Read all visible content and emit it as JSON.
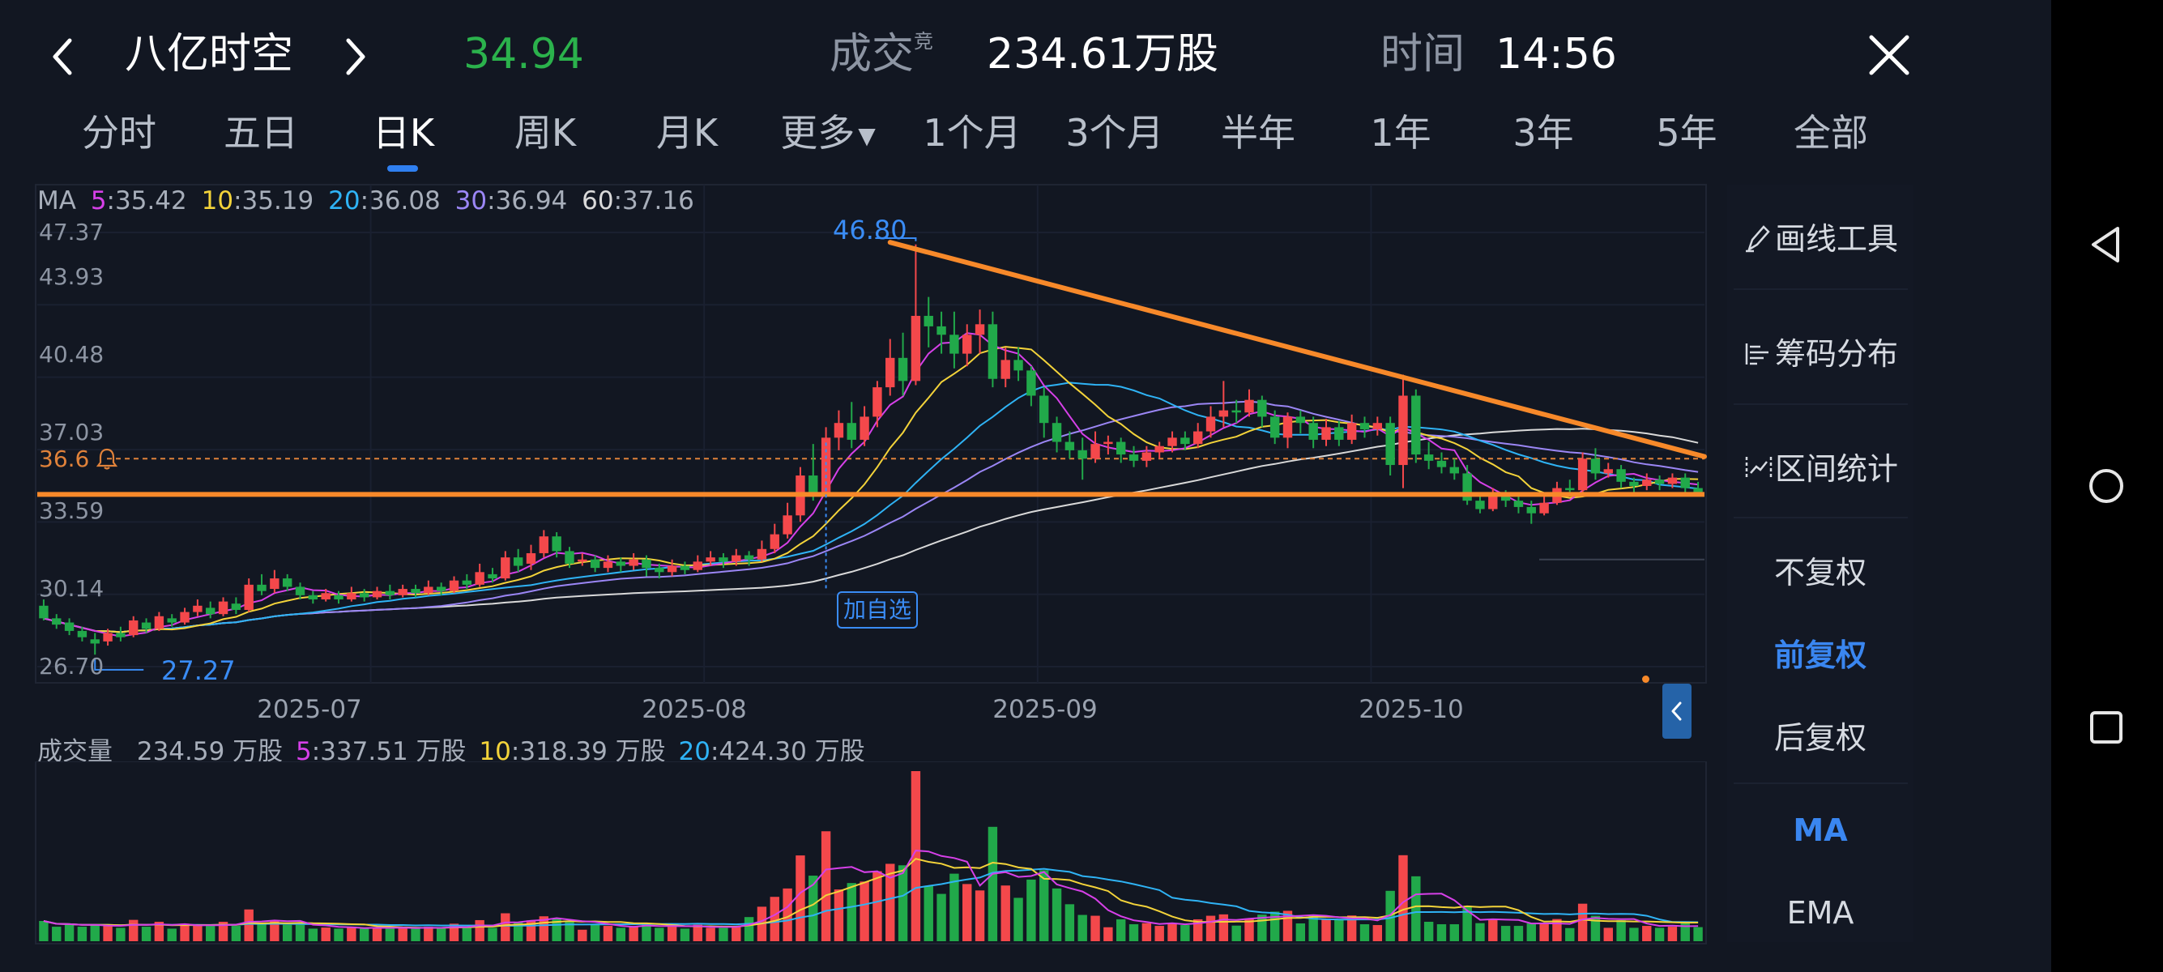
{
  "header": {
    "stock_name": "八亿时空",
    "price": "34.94",
    "volume_label": "成交",
    "volume_sup": "竞",
    "volume_value": "234.61万股",
    "time_label": "时间",
    "time_value": "14:56"
  },
  "tabs": [
    {
      "label": "分时",
      "active": false
    },
    {
      "label": "五日",
      "active": false
    },
    {
      "label": "日K",
      "active": true
    },
    {
      "label": "周K",
      "active": false
    },
    {
      "label": "月K",
      "active": false
    },
    {
      "label": "更多",
      "active": false
    },
    {
      "label": "1个月",
      "active": false
    },
    {
      "label": "3个月",
      "active": false
    },
    {
      "label": "半年",
      "active": false
    },
    {
      "label": "1年",
      "active": false
    },
    {
      "label": "3年",
      "active": false
    },
    {
      "label": "5年",
      "active": false
    },
    {
      "label": "全部",
      "active": false
    }
  ],
  "ma_line": {
    "label": "MA",
    "items": [
      {
        "period": "5",
        "value": ":35.42",
        "color": "#d640e8"
      },
      {
        "period": "10",
        "value": ":35.19",
        "color": "#f3d33a"
      },
      {
        "period": "20",
        "value": ":36.08",
        "color": "#2fb3f5"
      },
      {
        "period": "30",
        "value": ":36.94",
        "color": "#9b86f5"
      },
      {
        "period": "60",
        "value": ":37.16",
        "color": "#d9d9d9"
      }
    ]
  },
  "alert": {
    "value": "36.6",
    "color": "#e0823a"
  },
  "annotations": {
    "high": "46.80",
    "low": "27.27",
    "add_watch": "加自选"
  },
  "volume_line": {
    "label": "成交量",
    "value": "234.59 万股",
    "items": [
      {
        "period": "5",
        "value": ":337.51 万股",
        "color": "#d640e8"
      },
      {
        "period": "10",
        "value": ":318.39 万股",
        "color": "#f3d33a"
      },
      {
        "period": "20",
        "value": ":424.30 万股",
        "color": "#2fb3f5"
      }
    ]
  },
  "side_panel": {
    "draw_tool": "画线工具",
    "chip_dist": "筹码分布",
    "range_stats": "区间统计",
    "no_adjust": "不复权",
    "forward_adjust": "前复权",
    "backward_adjust": "后复权",
    "ma": "MA",
    "ema": "EMA"
  },
  "colors": {
    "up": "#f4484b",
    "down": "#21a94a",
    "accent": "#2f7ff0",
    "trendline": "#f7892a",
    "price_green": "#2bb24c"
  },
  "chart_data": {
    "type": "candlestick",
    "y_ticks": [
      "47.37",
      "43.93",
      "40.48",
      "37.03",
      "33.59",
      "30.14",
      "26.70"
    ],
    "ylim": [
      26.7,
      47.37
    ],
    "x_ticks": [
      "2025-07",
      "2025-08",
      "2025-09",
      "2025-10"
    ],
    "high_marker": 46.8,
    "low_marker": 27.27,
    "trendline": {
      "start": 46.9,
      "end": 36.7
    },
    "support_line": 34.9,
    "alert_line": 36.6,
    "candles": [
      [
        29.6,
        29.0,
        29.9,
        28.9
      ],
      [
        29.0,
        28.7,
        29.2,
        28.5
      ],
      [
        28.8,
        28.4,
        29.0,
        28.2
      ],
      [
        28.4,
        28.1,
        28.6,
        27.9
      ],
      [
        28.0,
        27.8,
        28.3,
        27.27
      ],
      [
        27.9,
        28.3,
        28.5,
        27.7
      ],
      [
        28.3,
        28.1,
        28.6,
        27.9
      ],
      [
        28.2,
        28.9,
        29.1,
        28.1
      ],
      [
        28.8,
        28.5,
        29.0,
        28.3
      ],
      [
        28.5,
        29.1,
        29.3,
        28.4
      ],
      [
        29.0,
        28.8,
        29.2,
        28.6
      ],
      [
        28.8,
        29.3,
        29.5,
        28.7
      ],
      [
        29.3,
        29.6,
        29.9,
        29.1
      ],
      [
        29.5,
        29.2,
        29.8,
        29.0
      ],
      [
        29.2,
        29.8,
        30.0,
        29.1
      ],
      [
        29.7,
        29.4,
        30.0,
        29.2
      ],
      [
        29.4,
        30.6,
        30.9,
        29.3
      ],
      [
        30.6,
        30.3,
        31.1,
        30.1
      ],
      [
        30.4,
        30.9,
        31.3,
        30.2
      ],
      [
        30.9,
        30.5,
        31.1,
        30.3
      ],
      [
        30.5,
        30.1,
        30.7,
        29.9
      ],
      [
        30.1,
        29.9,
        30.3,
        29.7
      ],
      [
        29.9,
        30.2,
        30.4,
        29.8
      ],
      [
        30.1,
        29.9,
        30.3,
        29.7
      ],
      [
        29.9,
        30.2,
        30.5,
        29.8
      ],
      [
        30.2,
        30.0,
        30.4,
        29.8
      ],
      [
        30.0,
        30.3,
        30.5,
        29.9
      ],
      [
        30.3,
        30.1,
        30.6,
        29.9
      ],
      [
        30.1,
        30.4,
        30.6,
        30.0
      ],
      [
        30.4,
        30.2,
        30.6,
        30.0
      ],
      [
        30.2,
        30.5,
        30.8,
        30.1
      ],
      [
        30.5,
        30.3,
        30.7,
        30.1
      ],
      [
        30.3,
        30.8,
        31.0,
        30.2
      ],
      [
        30.8,
        30.6,
        31.1,
        30.4
      ],
      [
        30.6,
        31.2,
        31.6,
        30.5
      ],
      [
        31.1,
        30.9,
        31.4,
        30.7
      ],
      [
        30.9,
        31.9,
        32.2,
        30.8
      ],
      [
        31.9,
        31.5,
        32.3,
        31.2
      ],
      [
        31.6,
        32.1,
        32.5,
        31.3
      ],
      [
        32.1,
        32.9,
        33.2,
        31.9
      ],
      [
        32.9,
        32.2,
        33.1,
        31.9
      ],
      [
        32.2,
        31.6,
        32.4,
        31.4
      ],
      [
        31.7,
        31.8,
        32.1,
        31.5
      ],
      [
        31.8,
        31.4,
        32.0,
        31.2
      ],
      [
        31.4,
        31.7,
        32.0,
        31.2
      ],
      [
        31.7,
        31.5,
        31.9,
        31.2
      ],
      [
        31.5,
        31.8,
        32.1,
        31.3
      ],
      [
        31.8,
        31.4,
        32.0,
        31.0
      ],
      [
        31.4,
        31.2,
        31.6,
        30.9
      ],
      [
        31.2,
        31.5,
        31.8,
        31.0
      ],
      [
        31.5,
        31.3,
        31.7,
        31.1
      ],
      [
        31.3,
        31.7,
        32.0,
        31.2
      ],
      [
        31.7,
        31.9,
        32.2,
        31.5
      ],
      [
        31.9,
        31.7,
        32.1,
        31.4
      ],
      [
        31.7,
        32.0,
        32.3,
        31.5
      ],
      [
        32.0,
        31.8,
        32.2,
        31.5
      ],
      [
        31.8,
        32.3,
        32.7,
        31.7
      ],
      [
        32.3,
        33.0,
        33.5,
        32.1
      ],
      [
        33.0,
        33.9,
        34.5,
        32.8
      ],
      [
        33.9,
        35.8,
        36.2,
        33.6
      ],
      [
        35.8,
        35.0,
        37.3,
        34.6
      ],
      [
        35.0,
        37.6,
        38.1,
        34.8
      ],
      [
        37.6,
        38.3,
        38.9,
        37.0
      ],
      [
        38.3,
        37.5,
        39.3,
        37.1
      ],
      [
        37.5,
        38.6,
        39.1,
        37.2
      ],
      [
        38.6,
        40.0,
        40.3,
        38.1
      ],
      [
        40.0,
        41.4,
        42.3,
        39.6
      ],
      [
        41.4,
        40.3,
        42.6,
        39.6
      ],
      [
        40.3,
        43.4,
        46.8,
        40.1
      ],
      [
        43.4,
        42.9,
        44.3,
        41.9
      ],
      [
        42.9,
        42.5,
        43.6,
        41.6
      ],
      [
        42.5,
        41.6,
        43.6,
        40.9
      ],
      [
        41.6,
        42.5,
        43.0,
        41.0
      ],
      [
        42.5,
        43.0,
        43.7,
        41.6
      ],
      [
        43.0,
        40.4,
        43.6,
        40.0
      ],
      [
        40.4,
        41.3,
        41.9,
        40.0
      ],
      [
        41.3,
        40.8,
        41.9,
        40.3
      ],
      [
        40.8,
        39.6,
        41.0,
        39.1
      ],
      [
        39.6,
        38.3,
        40.0,
        37.6
      ],
      [
        38.3,
        37.4,
        38.6,
        36.9
      ],
      [
        37.4,
        37.0,
        37.9,
        36.6
      ],
      [
        37.0,
        36.6,
        37.6,
        35.6
      ],
      [
        36.6,
        37.3,
        37.9,
        36.4
      ],
      [
        37.3,
        37.4,
        37.7,
        36.8
      ],
      [
        37.4,
        36.8,
        37.6,
        36.4
      ],
      [
        36.8,
        36.5,
        37.2,
        36.2
      ],
      [
        36.5,
        36.9,
        37.2,
        36.2
      ],
      [
        36.9,
        37.2,
        37.4,
        36.6
      ],
      [
        37.2,
        37.6,
        37.9,
        36.9
      ],
      [
        37.6,
        37.3,
        37.9,
        37.0
      ],
      [
        37.3,
        37.9,
        38.3,
        37.1
      ],
      [
        37.9,
        38.6,
        39.1,
        37.6
      ],
      [
        38.6,
        38.9,
        40.3,
        38.1
      ],
      [
        38.9,
        38.8,
        39.4,
        38.3
      ],
      [
        38.8,
        39.4,
        39.9,
        38.6
      ],
      [
        39.4,
        38.6,
        39.6,
        38.1
      ],
      [
        38.6,
        37.6,
        38.9,
        37.3
      ],
      [
        37.6,
        38.6,
        38.8,
        37.1
      ],
      [
        38.6,
        38.3,
        38.9,
        37.8
      ],
      [
        38.3,
        37.5,
        38.6,
        37.1
      ],
      [
        37.5,
        38.1,
        38.5,
        37.2
      ],
      [
        38.1,
        37.5,
        38.4,
        37.2
      ],
      [
        37.5,
        38.3,
        38.7,
        37.3
      ],
      [
        38.3,
        38.0,
        38.6,
        37.6
      ],
      [
        38.0,
        38.3,
        38.6,
        37.7
      ],
      [
        38.3,
        36.3,
        38.6,
        35.8
      ],
      [
        36.3,
        39.6,
        40.6,
        35.2
      ],
      [
        39.6,
        36.8,
        39.9,
        36.4
      ],
      [
        36.8,
        36.5,
        37.4,
        36.1
      ],
      [
        36.5,
        36.2,
        36.9,
        35.9
      ],
      [
        36.2,
        35.9,
        36.6,
        35.6
      ],
      [
        35.9,
        34.6,
        36.3,
        34.4
      ],
      [
        34.6,
        34.2,
        35.0,
        34.0
      ],
      [
        34.2,
        34.9,
        35.2,
        34.1
      ],
      [
        34.9,
        34.6,
        35.1,
        34.3
      ],
      [
        34.6,
        34.3,
        34.8,
        34.0
      ],
      [
        34.3,
        34.0,
        34.6,
        33.5
      ],
      [
        34.0,
        34.5,
        34.8,
        33.9
      ],
      [
        34.5,
        35.2,
        35.5,
        34.4
      ],
      [
        35.2,
        35.1,
        35.6,
        34.8
      ],
      [
        35.1,
        36.6,
        36.9,
        35.0
      ],
      [
        36.6,
        35.9,
        37.1,
        35.6
      ],
      [
        35.9,
        36.1,
        36.4,
        35.7
      ],
      [
        36.1,
        35.5,
        36.3,
        35.2
      ],
      [
        35.5,
        35.3,
        35.7,
        35.0
      ],
      [
        35.3,
        35.6,
        35.9,
        35.1
      ],
      [
        35.6,
        35.4,
        35.8,
        35.1
      ],
      [
        35.4,
        35.7,
        35.9,
        35.2
      ],
      [
        35.7,
        35.2,
        35.9,
        35.0
      ],
      [
        35.2,
        34.94,
        35.5,
        34.8
      ]
    ]
  }
}
